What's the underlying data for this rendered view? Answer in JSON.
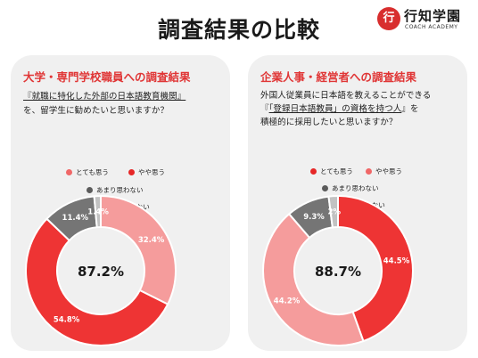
{
  "header": {
    "title": "調査結果の比較",
    "logo": {
      "mark": "行",
      "name": "行知学園",
      "sub": "COACH ACADEMY"
    }
  },
  "panels": [
    {
      "heading": "大学・専門学校職員への調査結果",
      "question": {
        "line1_underlined": "『就職に特化した外部の日本語教育機関』",
        "line2": "を、留学生に勧めたいと思いますか？"
      }
    },
    {
      "heading": "企業人事・経営者への調査結果",
      "question": {
        "line1": "外国人従業員に日本語を教えることができる",
        "line2_pre": "『",
        "line2_u1": "「登録日本語教員」の資格を持つ人",
        "line2_post": "』を",
        "line3": "積極的に採用したいと思いますか？"
      }
    }
  ],
  "legend": [
    {
      "label": "とても思う",
      "color": "#f06767"
    },
    {
      "label": "やや思う",
      "color": "#e62727"
    },
    {
      "label": "あまり思わない",
      "color": "#5b5b5b"
    },
    {
      "label": "まったく思わない",
      "color": "#a8a8a8"
    }
  ],
  "chart_data": [
    {
      "type": "pie",
      "variant": "donut",
      "center_label": "87.2%",
      "categories": [
        "とても思う",
        "やや思う",
        "あまり思わない",
        "まったく思わない"
      ],
      "values": [
        32.4,
        54.8,
        11.4,
        1.4
      ],
      "labels": [
        "32.4%",
        "54.8%",
        "11.4%",
        "1.4%"
      ],
      "colors": [
        "#f59c9c",
        "#ee3434",
        "#757575",
        "#c2c2c2"
      ]
    },
    {
      "type": "pie",
      "variant": "donut",
      "center_label": "88.7%",
      "categories": [
        "とても思う",
        "やや思う",
        "あまり思わない",
        "まったく思わない"
      ],
      "values": [
        44.5,
        44.2,
        9.3,
        2.0
      ],
      "labels": [
        "44.5%",
        "44.2%",
        "9.3%",
        "2%"
      ],
      "colors": [
        "#ee3434",
        "#f59c9c",
        "#757575",
        "#c2c2c2"
      ]
    }
  ]
}
